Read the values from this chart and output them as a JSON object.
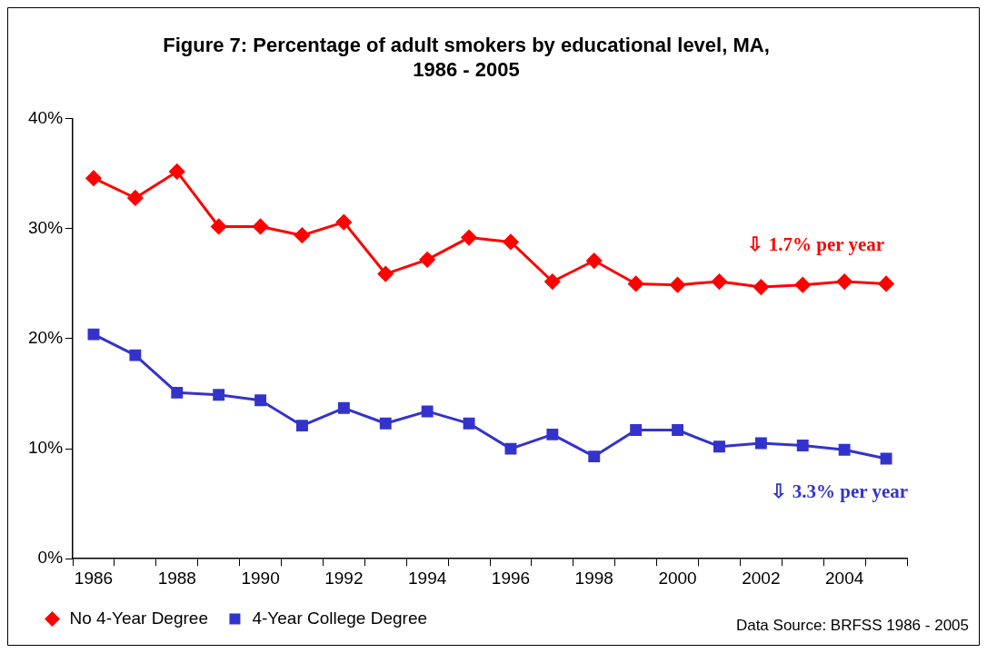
{
  "chart_data": {
    "type": "line",
    "title": "Figure 7: Percentage of adult smokers by educational level, MA, 1986 - 2005",
    "categories": [
      "1986",
      null,
      "1988",
      null,
      "1990",
      null,
      "1992",
      null,
      "1994",
      null,
      "1996",
      null,
      "1998",
      null,
      "2000",
      null,
      "2002",
      null,
      "2004",
      null
    ],
    "series": [
      {
        "name": "No 4-Year Degree",
        "color": "#ff0000",
        "marker": "diamond",
        "values": [
          34.6,
          32.8,
          35.2,
          30.2,
          30.2,
          29.4,
          30.6,
          25.9,
          27.2,
          29.2,
          28.8,
          25.2,
          27.1,
          25.0,
          24.9,
          25.2,
          24.7,
          24.9,
          25.2,
          25.0
        ]
      },
      {
        "name": "4-Year College Degree",
        "color": "#3333cc",
        "marker": "square",
        "values": [
          20.4,
          18.5,
          15.1,
          14.9,
          14.4,
          12.1,
          13.7,
          12.3,
          13.4,
          12.3,
          10.0,
          11.3,
          9.3,
          11.7,
          11.7,
          10.2,
          10.5,
          10.3,
          9.9,
          9.1
        ]
      }
    ],
    "ylim": [
      0,
      40
    ],
    "yticks": [
      {
        "value": 0,
        "label": "0%"
      },
      {
        "value": 10,
        "label": "10%"
      },
      {
        "value": 20,
        "label": "20%"
      },
      {
        "value": 30,
        "label": "30%"
      },
      {
        "value": 40,
        "label": "40%"
      }
    ],
    "grid": false,
    "legend": "bottom left",
    "annotations": [
      "⇩ 1.7% per year",
      "⇩ 3.3% per year",
      "Data Source: BRFSS 1986 - 2005"
    ]
  }
}
